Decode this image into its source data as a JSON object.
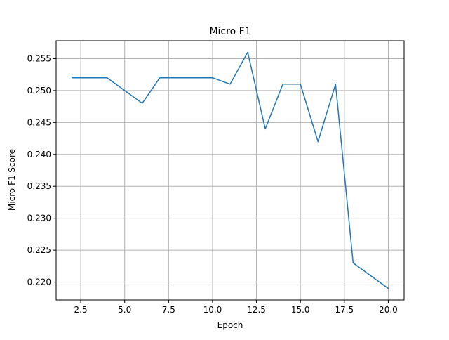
{
  "chart_data": {
    "type": "line",
    "title": "Micro F1",
    "xlabel": "Epoch",
    "ylabel": "Micro F1 Score",
    "xlim": [
      1.1,
      20.9
    ],
    "ylim": [
      0.2172,
      0.2578
    ],
    "grid": true,
    "x_ticks": [
      2.5,
      5.0,
      7.5,
      10.0,
      12.5,
      15.0,
      17.5,
      20.0
    ],
    "x_tick_labels": [
      "2.5",
      "5.0",
      "7.5",
      "10.0",
      "12.5",
      "15.0",
      "17.5",
      "20.0"
    ],
    "y_ticks": [
      0.22,
      0.225,
      0.23,
      0.235,
      0.24,
      0.245,
      0.25,
      0.255
    ],
    "y_tick_labels": [
      "0.220",
      "0.225",
      "0.230",
      "0.235",
      "0.240",
      "0.245",
      "0.250",
      "0.255"
    ],
    "series": [
      {
        "color": "#1f77b4",
        "x": [
          2,
          3,
          4,
          5,
          6,
          7,
          8,
          9,
          10,
          11,
          12,
          13,
          14,
          15,
          16,
          17,
          18,
          19,
          20
        ],
        "y": [
          0.252,
          0.252,
          0.252,
          0.25,
          0.248,
          0.252,
          0.252,
          0.252,
          0.252,
          0.251,
          0.256,
          0.244,
          0.251,
          0.251,
          0.242,
          0.251,
          0.223,
          0.221,
          0.219
        ]
      }
    ]
  }
}
